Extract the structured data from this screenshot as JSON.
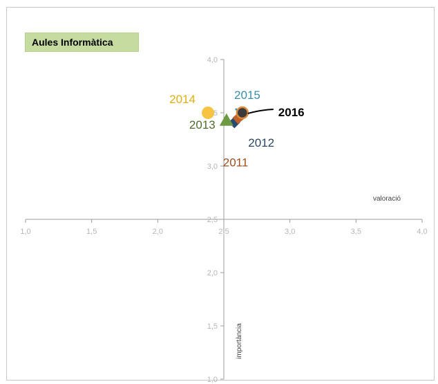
{
  "chart_data": {
    "type": "scatter",
    "title": "Aules Informàtica",
    "xlabel": "valoració",
    "ylabel": "importància",
    "xlim": [
      1.0,
      4.0
    ],
    "ylim": [
      1.0,
      4.0
    ],
    "x_ticks": [
      "1,0",
      "1,5",
      "2,0",
      "2,5",
      "3,0",
      "3,5",
      "4,0"
    ],
    "y_ticks": [
      "1,0",
      "1,5",
      "2,0",
      "2,5",
      "3,0",
      "3,5",
      "4,0"
    ],
    "axes_cross_at": [
      2.5,
      2.5
    ],
    "series": [
      {
        "name": "2011",
        "x": 2.61,
        "y": 3.45,
        "marker": "square",
        "color": "#c0622a"
      },
      {
        "name": "2012",
        "x": 2.58,
        "y": 3.41,
        "marker": "diamond",
        "color": "#2a4a6e"
      },
      {
        "name": "2013",
        "x": 2.52,
        "y": 3.43,
        "marker": "triangle",
        "color": "#6f9a45"
      },
      {
        "name": "2014",
        "x": 2.38,
        "y": 3.5,
        "marker": "circle",
        "color": "#f6c343"
      },
      {
        "name": "2015",
        "x": 2.62,
        "y": 3.5,
        "marker": "x",
        "color": "#3d9fc0"
      },
      {
        "name": "2016",
        "x": 2.64,
        "y": 3.5,
        "marker": "circle",
        "color": "#3a3a3a"
      }
    ],
    "year_label_colors": {
      "2011": "#a0501c",
      "2012": "#2c4766",
      "2013": "#4f6b2c",
      "2014": "#e0b012",
      "2015": "#3a8ea8",
      "2016": "#000000"
    },
    "highlight": "2016"
  }
}
